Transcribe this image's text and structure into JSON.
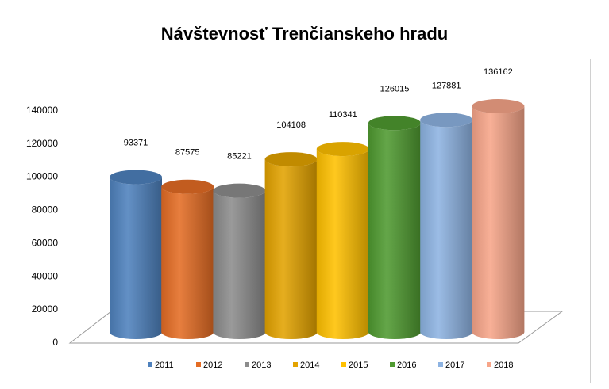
{
  "chart_data": {
    "type": "bar",
    "bar_style": "3d-cylinder",
    "title": "Návštevnosť  Trenčianskeho hradu",
    "xlabel": "",
    "ylabel": "",
    "categories": [
      "2011",
      "2012",
      "2013",
      "2014",
      "2015",
      "2016",
      "2017",
      "2018"
    ],
    "values": [
      93371,
      87575,
      85221,
      104108,
      110341,
      126015,
      127881,
      136162
    ],
    "data_labels": [
      "93371",
      "87575",
      "85221",
      "104108",
      "110341",
      "126015",
      "127881",
      "136162"
    ],
    "y_ticks": [
      0,
      20000,
      40000,
      60000,
      80000,
      100000,
      120000,
      140000
    ],
    "ylim": [
      0,
      140000
    ],
    "grid": false,
    "legend": "bottom",
    "colors": [
      "#4e81bd",
      "#e46c24",
      "#8c8c8c",
      "#e3a300",
      "#ffc000",
      "#4f9a30",
      "#8db3e2",
      "#f7a589"
    ]
  }
}
